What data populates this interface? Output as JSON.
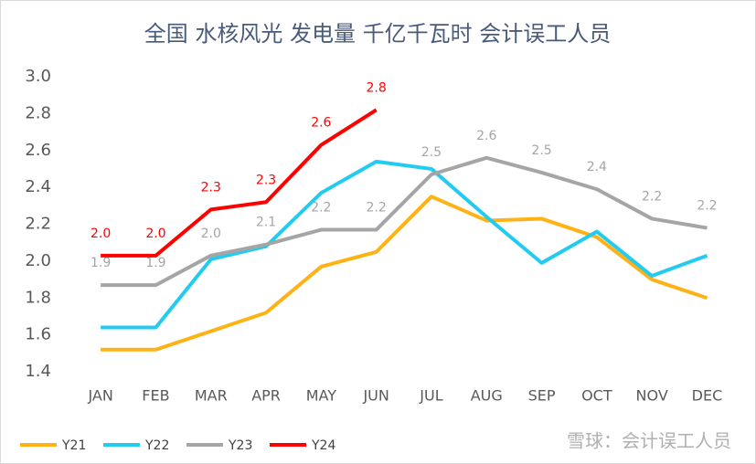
{
  "chart_data": {
    "type": "line",
    "title": "全国 水核风光 发电量 千亿千瓦时 会计误工人员",
    "watermark": "雪球：会计误工人员",
    "categories": [
      "JAN",
      "FEB",
      "MAR",
      "APR",
      "MAY",
      "JUN",
      "JUL",
      "AUG",
      "SEP",
      "OCT",
      "NOV",
      "DEC"
    ],
    "ylim": [
      1.4,
      3.0
    ],
    "yticks": [
      1.4,
      1.6,
      1.8,
      {
        "value": 2,
        "label": "2.0"
      },
      2.2,
      2.4,
      2.6,
      2.8,
      {
        "value": 3,
        "label": "3.0"
      }
    ],
    "grid": false,
    "legend": "bottom",
    "series": [
      {
        "name": "Y21",
        "color": "#ffb216",
        "values": [
          1.52,
          1.52,
          1.62,
          1.72,
          1.97,
          2.05,
          2.35,
          2.22,
          2.23,
          2.13,
          1.9,
          1.8
        ]
      },
      {
        "name": "Y22",
        "color": "#22ccf0",
        "values": [
          1.64,
          1.64,
          2.01,
          2.08,
          2.37,
          2.54,
          2.5,
          2.24,
          1.99,
          2.16,
          1.92,
          2.03
        ]
      },
      {
        "name": "Y23",
        "color": "#a5a5a5",
        "values": [
          1.87,
          1.87,
          2.03,
          2.09,
          2.17,
          2.17,
          2.47,
          2.56,
          2.48,
          2.39,
          2.23,
          2.18
        ],
        "value_labels": [
          "1.9",
          "1.9",
          "2.0",
          "2.1",
          "2.2",
          "2.2",
          "2.5",
          "2.6",
          "2.5",
          "2.4",
          "2.2",
          "2.2"
        ]
      },
      {
        "name": "Y24",
        "color": "#ff0000",
        "values": [
          2.03,
          2.03,
          2.28,
          2.32,
          2.63,
          2.82,
          null,
          null,
          null,
          null,
          null,
          null
        ],
        "value_labels": [
          "2.0",
          "2.0",
          "2.3",
          "2.3",
          "2.6",
          "2.8",
          null,
          null,
          null,
          null,
          null,
          null
        ]
      }
    ]
  }
}
